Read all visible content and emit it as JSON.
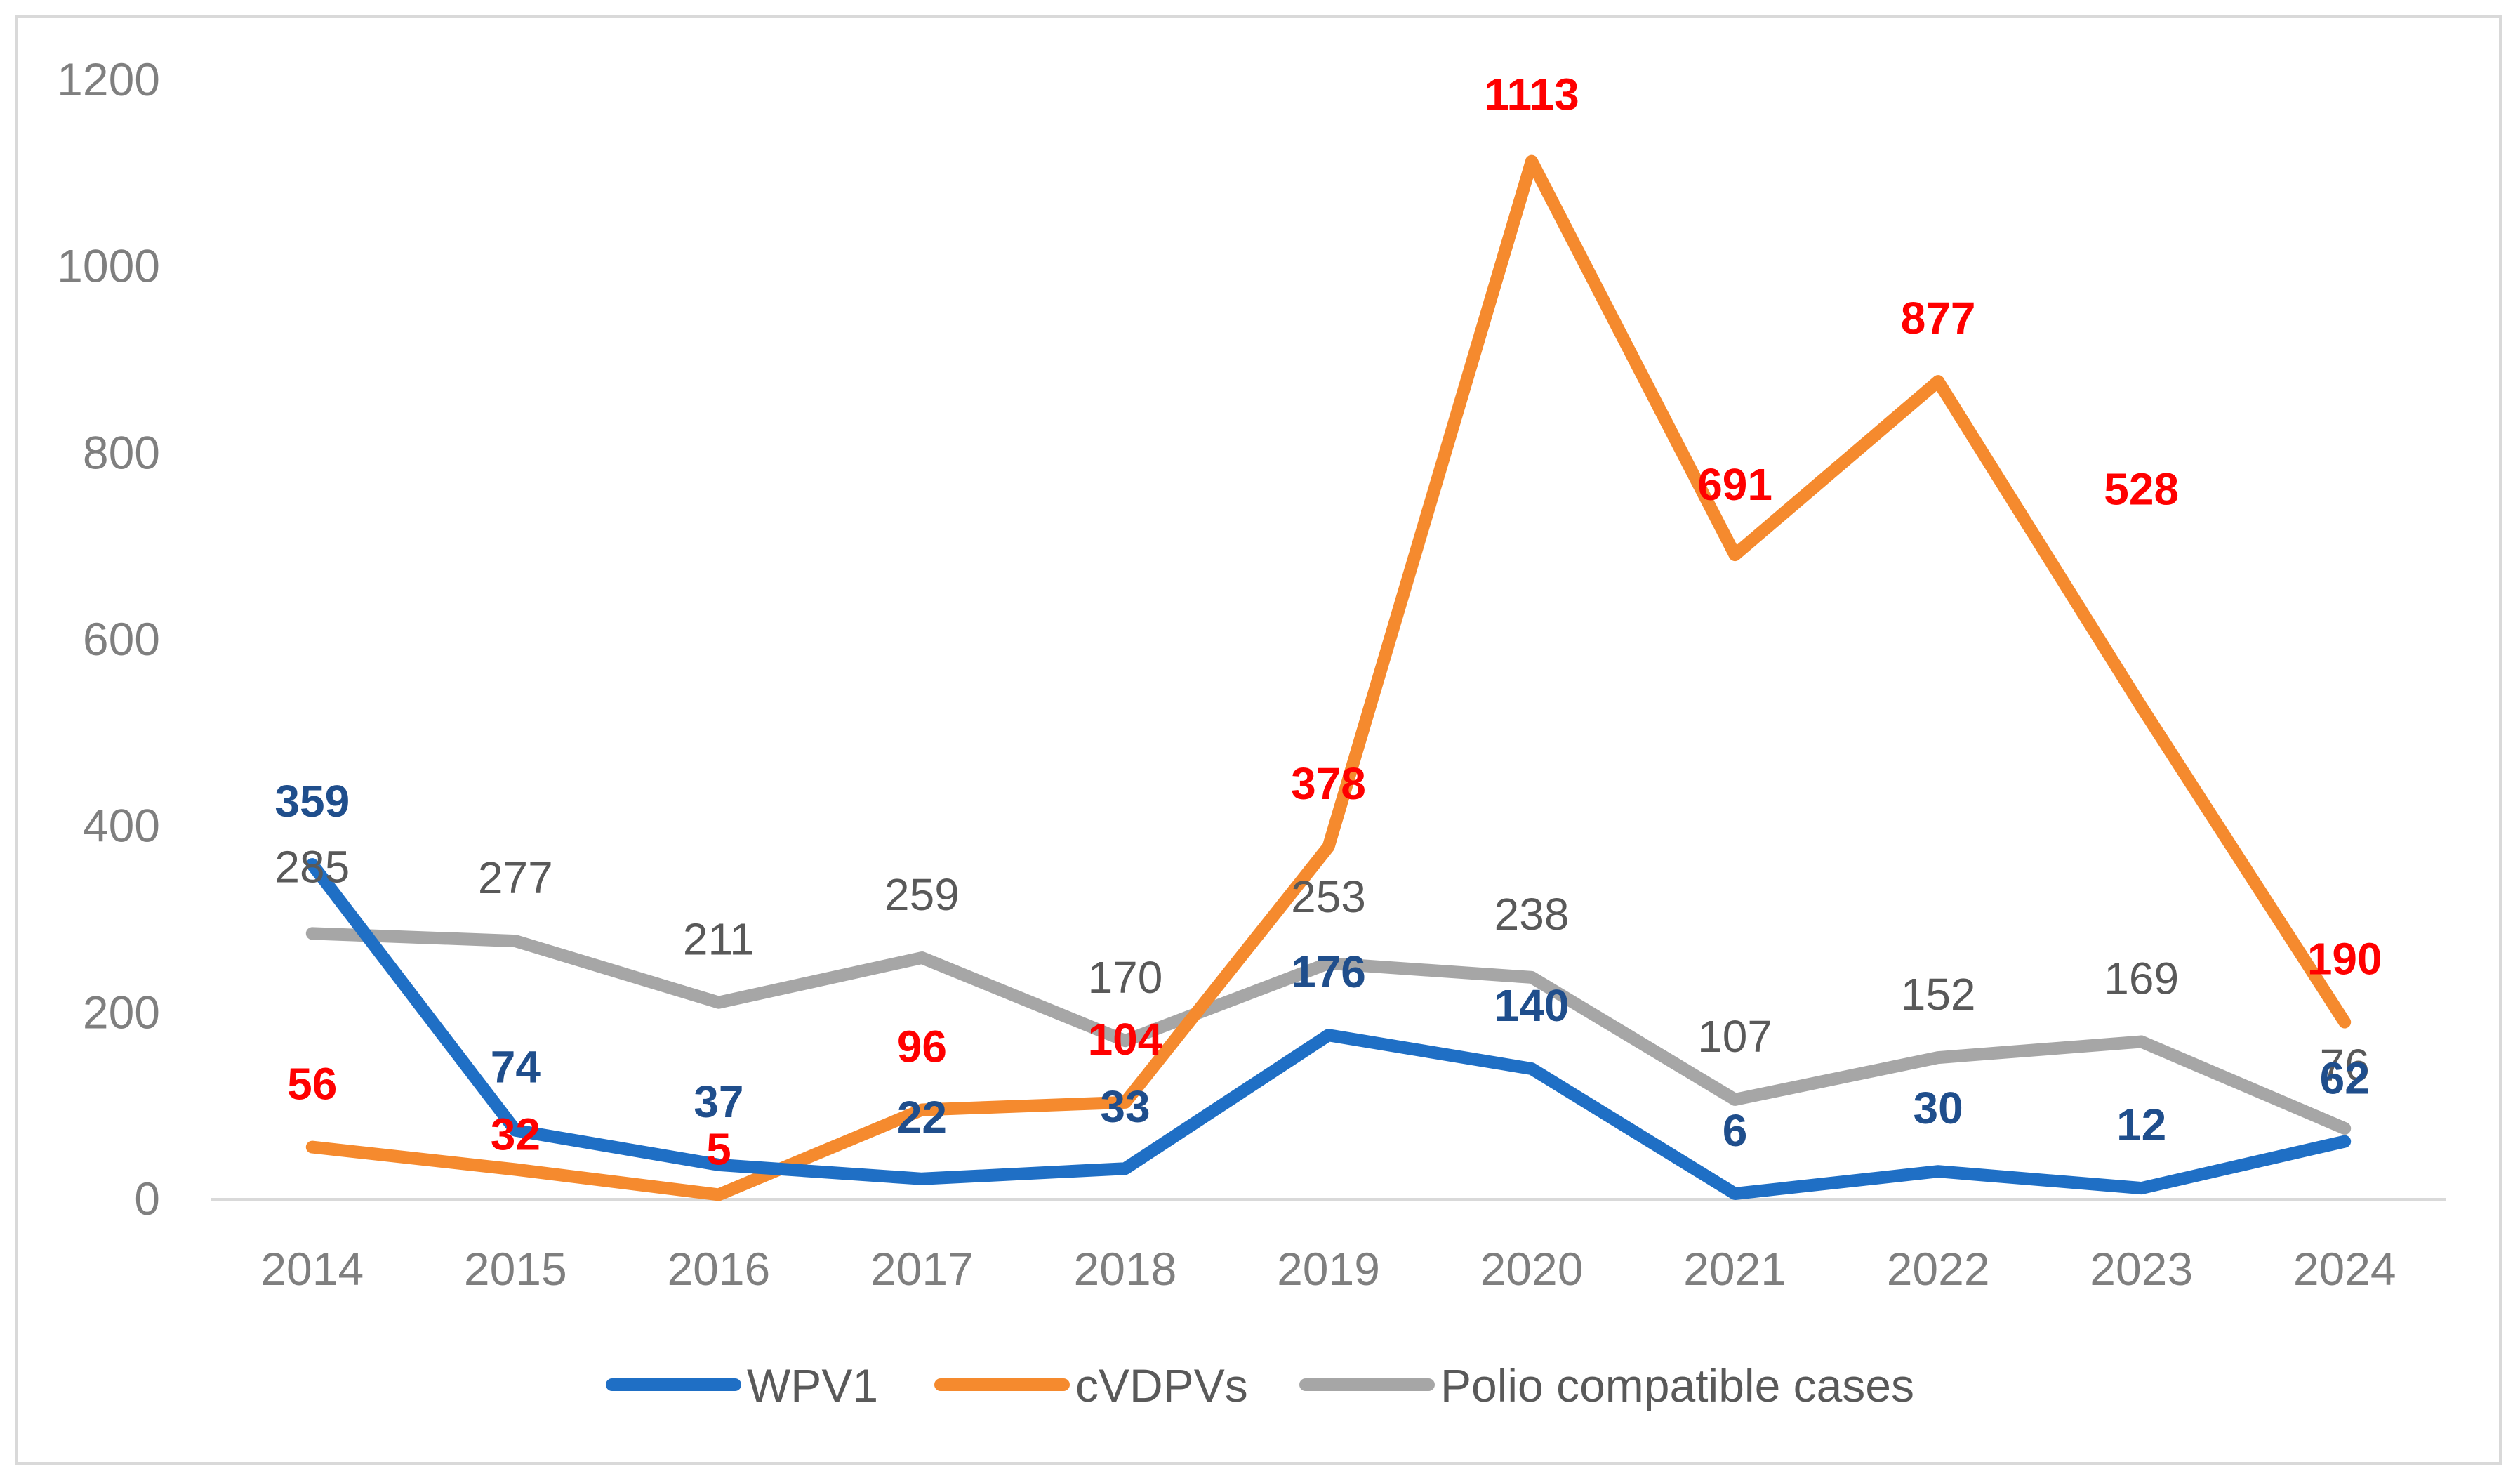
{
  "chart_data": {
    "type": "line",
    "title": "",
    "xlabel": "",
    "ylabel": "",
    "categories": [
      "2014",
      "2015",
      "2016",
      "2017",
      "2018",
      "2019",
      "2020",
      "2021",
      "2022",
      "2023",
      "2024"
    ],
    "ylim": [
      0,
      1200
    ],
    "yticks": [
      0,
      200,
      400,
      600,
      800,
      1000,
      1200
    ],
    "grid": false,
    "legend_position": "bottom",
    "series": [
      {
        "name": "WPV1",
        "color": "#1f6fc5",
        "label_color": "#1f4e8c",
        "label_bold": true,
        "values": [
          359,
          74,
          37,
          22,
          33,
          176,
          140,
          6,
          30,
          12,
          62
        ]
      },
      {
        "name": "cVDPVs",
        "color": "#f58a2e",
        "label_color": "#ff0000",
        "label_bold": true,
        "values": [
          56,
          32,
          5,
          96,
          104,
          378,
          1113,
          691,
          877,
          528,
          190
        ]
      },
      {
        "name": "Polio compatible cases",
        "color": "#a6a6a6",
        "label_color": "#595959",
        "label_bold": false,
        "values": [
          285,
          277,
          211,
          259,
          170,
          253,
          238,
          107,
          152,
          169,
          76
        ]
      }
    ]
  }
}
